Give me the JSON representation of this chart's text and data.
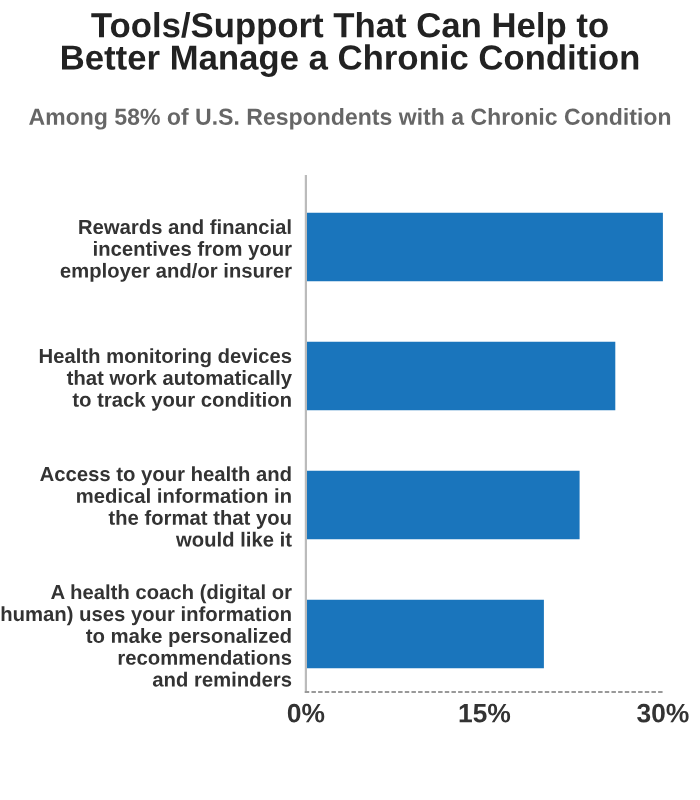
{
  "chart_data": {
    "type": "bar",
    "orientation": "horizontal",
    "title": "Tools/Support That Can Help to\nBetter Manage a Chronic Condition",
    "subtitle": "Among 58% of U.S. Respondents with a Chronic Condition",
    "categories": [
      "Rewards and financial\nincentives from your\nemployer and/or insurer",
      "Health monitoring devices\nthat work automatically\nto track your condition",
      "Access to your health and\nmedical information in\nthe format that you\nwould like it",
      "A health coach (digital or\nhuman) uses your information\nto make personalized\nrecommendations\nand reminders"
    ],
    "values": [
      30,
      26,
      23,
      20
    ],
    "color": "#1a75bc",
    "xlim": [
      0,
      30
    ],
    "xticks": [
      {
        "value": 0,
        "label": "0%"
      },
      {
        "value": 15,
        "label": "15%"
      },
      {
        "value": 30,
        "label": "30%"
      }
    ],
    "grid": false,
    "legend": false
  }
}
